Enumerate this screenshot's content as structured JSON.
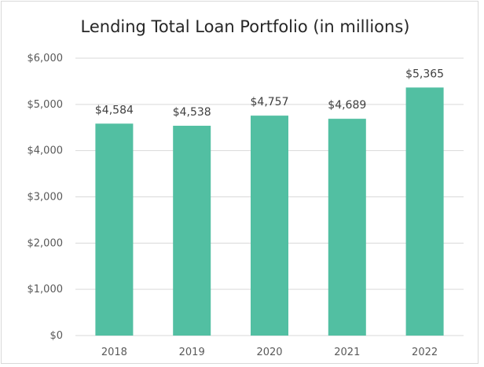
{
  "chart_data": {
    "type": "bar",
    "title": "Lending Total Loan Portfolio (in millions)",
    "categories": [
      "2018",
      "2019",
      "2020",
      "2021",
      "2022"
    ],
    "values": [
      4584,
      4538,
      4757,
      4689,
      5365
    ],
    "data_labels": [
      "$4,584",
      "$4,538",
      "$4,757",
      "$4,689",
      "$5,365"
    ],
    "y_ticks": [
      0,
      1000,
      2000,
      3000,
      4000,
      5000,
      6000
    ],
    "y_tick_labels": [
      "$0",
      "$1,000",
      "$2,000",
      "$3,000",
      "$4,000",
      "$5,000",
      "$6,000"
    ],
    "ylim": [
      0,
      6000
    ],
    "xlabel": "",
    "ylabel": "",
    "grid": true,
    "legend": "none",
    "bar_color": "#52bfa2"
  }
}
